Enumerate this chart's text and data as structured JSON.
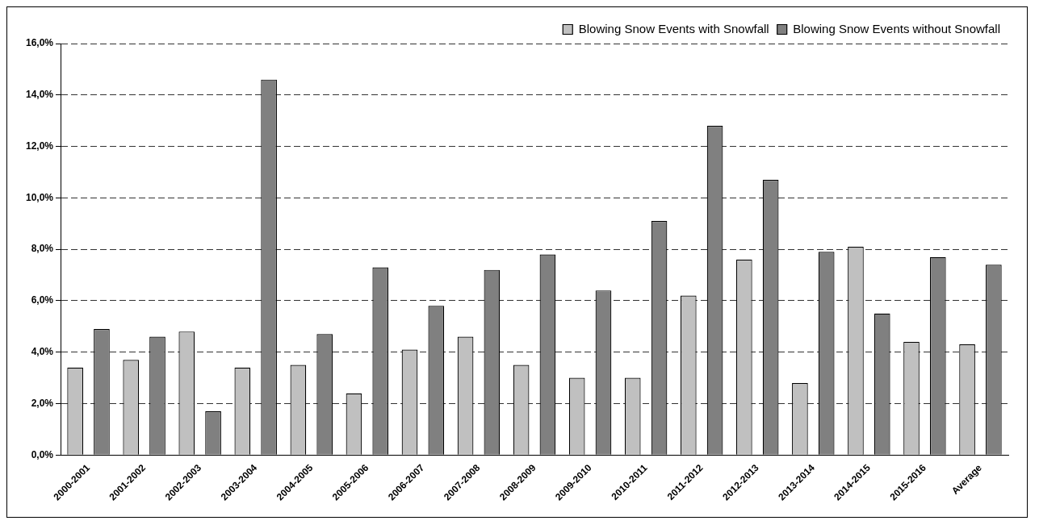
{
  "chart_data": {
    "type": "bar",
    "categories": [
      "2000-2001",
      "2001-2002",
      "2002-2003",
      "2003-2004",
      "2004-2005",
      "2005-2006",
      "2006-2007",
      "2007-2008",
      "2008-2009",
      "2009-2010",
      "2010-2011",
      "2011-2012",
      "2012-2013",
      "2013-2014",
      "2014-2015",
      "2015-2016",
      "Average"
    ],
    "series": [
      {
        "name": "Blowing Snow Events with Snowfall",
        "color": "#c0c0c0",
        "values": [
          3.4,
          3.7,
          4.8,
          3.4,
          3.5,
          2.4,
          4.1,
          4.6,
          3.5,
          3.0,
          3.0,
          6.2,
          7.6,
          2.8,
          8.1,
          4.4,
          4.3
        ]
      },
      {
        "name": "Blowing Snow Events without Snowfall",
        "color": "#808080",
        "values": [
          4.9,
          4.6,
          1.7,
          14.6,
          4.7,
          7.3,
          5.8,
          7.2,
          7.8,
          6.4,
          9.1,
          12.8,
          10.7,
          7.9,
          5.5,
          7.7,
          7.4
        ]
      }
    ],
    "ylim": [
      0,
      16
    ],
    "yticks": [
      {
        "value": 0,
        "label": "0,0%"
      },
      {
        "value": 2,
        "label": "2,0%"
      },
      {
        "value": 4,
        "label": "4,0%"
      },
      {
        "value": 6,
        "label": "6,0%"
      },
      {
        "value": 8,
        "label": "8,0%"
      },
      {
        "value": 10,
        "label": "10,0%"
      },
      {
        "value": 12,
        "label": "12,0%"
      },
      {
        "value": 14,
        "label": "14,0%"
      },
      {
        "value": 16,
        "label": "16,0%"
      }
    ],
    "grid": "y",
    "legend": "top right"
  }
}
